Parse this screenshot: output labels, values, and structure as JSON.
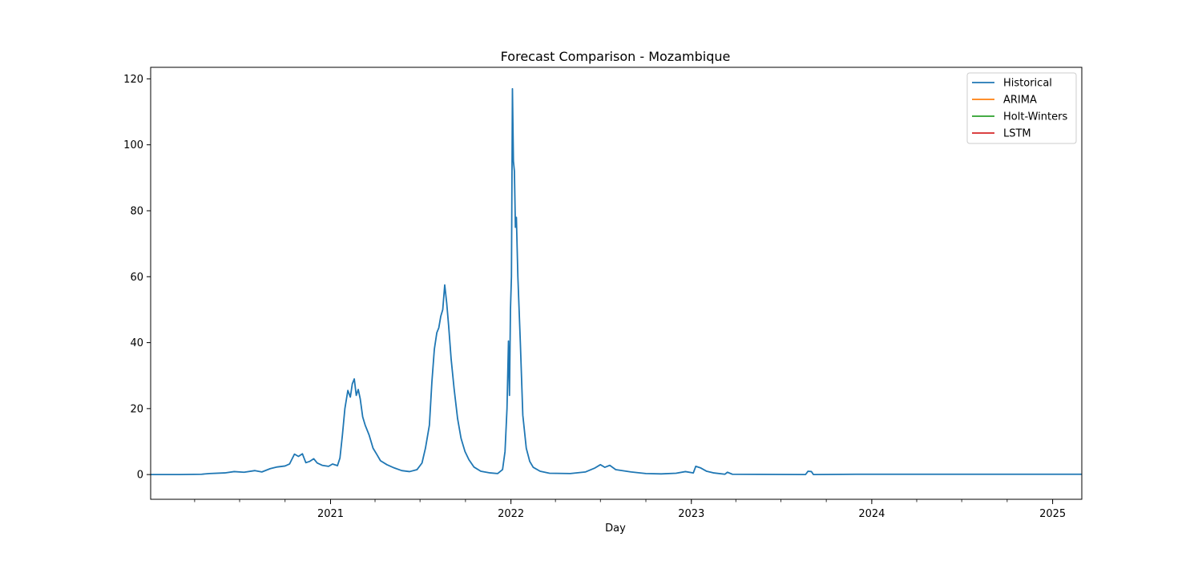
{
  "chart_data": {
    "type": "line",
    "title": "Forecast Comparison - Mozambique",
    "xlabel": "Day",
    "ylabel": "",
    "xlim": [
      "2020-01-03",
      "2025-03-01"
    ],
    "ylim": [
      -7.5,
      123.5
    ],
    "x_ticks": [
      "2021",
      "2022",
      "2023",
      "2024",
      "2025"
    ],
    "y_ticks": [
      0,
      20,
      40,
      60,
      80,
      100,
      120
    ],
    "grid": false,
    "legend_position": "top-right",
    "colors": {
      "Historical": "#1f77b4",
      "ARIMA": "#ff7f0e",
      "Holt-Winters": "#2ca02c",
      "LSTM": "#d62728"
    },
    "series": [
      {
        "name": "Historical",
        "points": [
          [
            "2020-01-03",
            0
          ],
          [
            "2020-03-01",
            0
          ],
          [
            "2020-04-15",
            0.1
          ],
          [
            "2020-05-01",
            0.3
          ],
          [
            "2020-06-01",
            0.5
          ],
          [
            "2020-06-20",
            0.9
          ],
          [
            "2020-07-10",
            0.7
          ],
          [
            "2020-08-01",
            1.2
          ],
          [
            "2020-08-15",
            0.8
          ],
          [
            "2020-09-01",
            1.8
          ],
          [
            "2020-09-15",
            2.3
          ],
          [
            "2020-10-01",
            2.6
          ],
          [
            "2020-10-10",
            3.2
          ],
          [
            "2020-10-20",
            6.2
          ],
          [
            "2020-10-28",
            5.5
          ],
          [
            "2020-11-05",
            6.3
          ],
          [
            "2020-11-12",
            3.6
          ],
          [
            "2020-11-20",
            4.0
          ],
          [
            "2020-11-28",
            4.8
          ],
          [
            "2020-12-05",
            3.5
          ],
          [
            "2020-12-15",
            2.8
          ],
          [
            "2020-12-28",
            2.5
          ],
          [
            "2021-01-05",
            3.2
          ],
          [
            "2021-01-15",
            2.7
          ],
          [
            "2021-01-20",
            5.0
          ],
          [
            "2021-01-25",
            12.0
          ],
          [
            "2021-01-30",
            20.0
          ],
          [
            "2021-02-05",
            25.5
          ],
          [
            "2021-02-10",
            23.5
          ],
          [
            "2021-02-14",
            27.5
          ],
          [
            "2021-02-18",
            29.0
          ],
          [
            "2021-02-22",
            24.0
          ],
          [
            "2021-02-26",
            25.8
          ],
          [
            "2021-03-02",
            23.0
          ],
          [
            "2021-03-07",
            17.5
          ],
          [
            "2021-03-12",
            15.0
          ],
          [
            "2021-03-20",
            12.0
          ],
          [
            "2021-03-28",
            8.0
          ],
          [
            "2021-04-05",
            6.0
          ],
          [
            "2021-04-12",
            4.2
          ],
          [
            "2021-04-25",
            3.0
          ],
          [
            "2021-05-10",
            2.0
          ],
          [
            "2021-05-25",
            1.2
          ],
          [
            "2021-06-10",
            0.9
          ],
          [
            "2021-06-25",
            1.5
          ],
          [
            "2021-07-05",
            3.5
          ],
          [
            "2021-07-12",
            8.0
          ],
          [
            "2021-07-20",
            15.0
          ],
          [
            "2021-07-25",
            28.0
          ],
          [
            "2021-07-30",
            38.0
          ],
          [
            "2021-08-04",
            43.0
          ],
          [
            "2021-08-08",
            44.5
          ],
          [
            "2021-08-12",
            48.0
          ],
          [
            "2021-08-16",
            50.0
          ],
          [
            "2021-08-20",
            57.5
          ],
          [
            "2021-08-24",
            52.0
          ],
          [
            "2021-08-28",
            45.0
          ],
          [
            "2021-09-02",
            35.0
          ],
          [
            "2021-09-08",
            26.0
          ],
          [
            "2021-09-15",
            17.0
          ],
          [
            "2021-09-22",
            11.0
          ],
          [
            "2021-09-30",
            7.0
          ],
          [
            "2021-10-08",
            4.5
          ],
          [
            "2021-10-18",
            2.3
          ],
          [
            "2021-11-01",
            1.0
          ],
          [
            "2021-11-20",
            0.5
          ],
          [
            "2021-12-05",
            0.3
          ],
          [
            "2021-12-15",
            1.5
          ],
          [
            "2021-12-20",
            7.0
          ],
          [
            "2021-12-24",
            20.0
          ],
          [
            "2021-12-27",
            40.5
          ],
          [
            "2021-12-29",
            24.0
          ],
          [
            "2021-12-31",
            50.0
          ],
          [
            "2022-01-02",
            60.0
          ],
          [
            "2022-01-04",
            117.0
          ],
          [
            "2022-01-06",
            95.0
          ],
          [
            "2022-01-08",
            92.0
          ],
          [
            "2022-01-10",
            75.0
          ],
          [
            "2022-01-12",
            78.0
          ],
          [
            "2022-01-15",
            60.0
          ],
          [
            "2022-01-20",
            40.0
          ],
          [
            "2022-01-25",
            18.0
          ],
          [
            "2022-02-01",
            8.0
          ],
          [
            "2022-02-08",
            4.0
          ],
          [
            "2022-02-15",
            2.2
          ],
          [
            "2022-03-01",
            1.0
          ],
          [
            "2022-03-20",
            0.4
          ],
          [
            "2022-05-01",
            0.3
          ],
          [
            "2022-06-01",
            0.8
          ],
          [
            "2022-06-20",
            2.0
          ],
          [
            "2022-07-01",
            3.0
          ],
          [
            "2022-07-10",
            2.2
          ],
          [
            "2022-07-20",
            2.8
          ],
          [
            "2022-08-01",
            1.5
          ],
          [
            "2022-09-01",
            0.8
          ],
          [
            "2022-10-01",
            0.3
          ],
          [
            "2022-11-01",
            0.2
          ],
          [
            "2022-12-01",
            0.4
          ],
          [
            "2022-12-20",
            0.9
          ],
          [
            "2023-01-05",
            0.5
          ],
          [
            "2023-01-10",
            2.5
          ],
          [
            "2023-01-20",
            2.0
          ],
          [
            "2023-02-01",
            1.0
          ],
          [
            "2023-02-15",
            0.5
          ],
          [
            "2023-03-10",
            0.1
          ],
          [
            "2023-03-15",
            0.7
          ],
          [
            "2023-03-25",
            0.1
          ],
          [
            "2023-08-20",
            0
          ],
          [
            "2023-08-25",
            1.0
          ],
          [
            "2023-09-01",
            0.9
          ],
          [
            "2023-09-05",
            0
          ],
          [
            "2023-12-01",
            0.1
          ],
          [
            "2024-06-01",
            0.1
          ],
          [
            "2024-12-01",
            0.1
          ],
          [
            "2025-03-01",
            0.1
          ]
        ]
      },
      {
        "name": "ARIMA",
        "points": []
      },
      {
        "name": "Holt-Winters",
        "points": []
      },
      {
        "name": "LSTM",
        "points": []
      }
    ]
  }
}
